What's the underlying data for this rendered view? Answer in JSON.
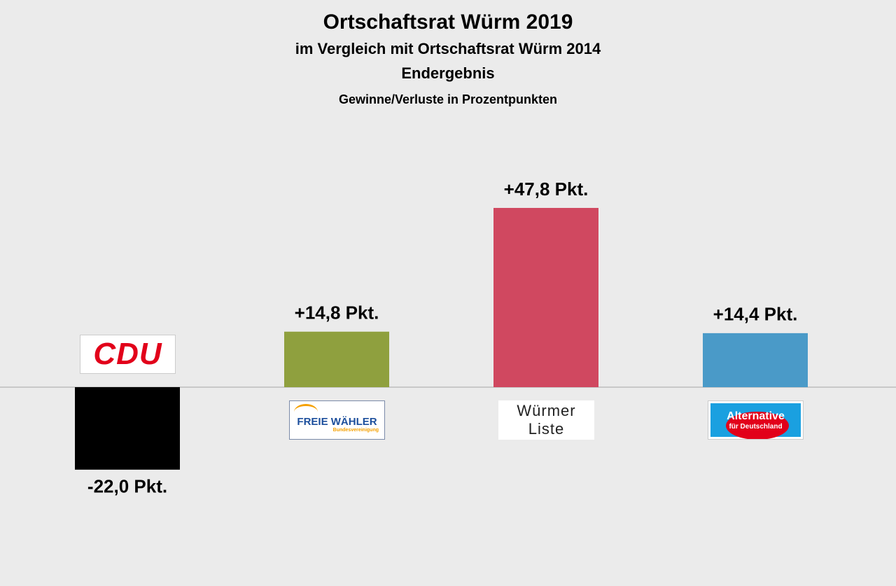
{
  "chart_data": {
    "type": "bar",
    "title": "Ortschaftsrat Würm 2019",
    "subtitle": "im Vergleich mit Ortschaftsrat Würm 2014",
    "subtitle2": "Endergebnis",
    "subtitle3": "Gewinne/Verluste in Prozentpunkten",
    "categories": [
      "CDU",
      "FREIE WÄHLER",
      "Würmer Liste",
      "Alternative"
    ],
    "category_sublabels": [
      null,
      "Bundesvereinigung",
      null,
      "für Deutschland"
    ],
    "values": [
      -22.0,
      14.8,
      47.8,
      14.4
    ],
    "value_labels": [
      "-22,0 Pkt.",
      "+14,8 Pkt.",
      "+47,8 Pkt.",
      "+14,4 Pkt."
    ],
    "colors": [
      "#000000",
      "#8fa03e",
      "#d04860",
      "#4a9ac8"
    ]
  }
}
